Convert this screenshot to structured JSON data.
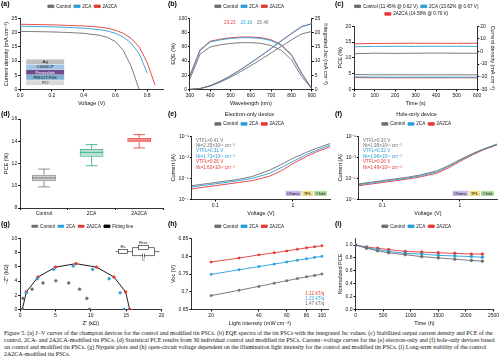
{
  "chart_data": [
    {
      "label": "(a)",
      "type": "line",
      "x_label": "Voltage (V)",
      "y_label": "Current density (mA cm⁻²)",
      "x": [
        0,
        0.1,
        0.2,
        0.3,
        0.4,
        0.5,
        0.55,
        0.6,
        0.65,
        0.7,
        0.75,
        0.8,
        0.85
      ],
      "series": [
        {
          "name": "Control",
          "color": "#6e6e6e",
          "values": [
            20.5,
            20.4,
            20.3,
            20.1,
            19.8,
            19.1,
            18.4,
            16.9,
            13.8,
            8.0,
            0.0,
            null,
            null
          ]
        },
        {
          "name": "2CA",
          "color": "#2a9fd8",
          "values": [
            22.3,
            22.2,
            22.1,
            21.9,
            21.6,
            21.1,
            20.6,
            19.8,
            18.5,
            16.3,
            12.6,
            5.8,
            null
          ]
        },
        {
          "name": "2A2CA",
          "color": "#e53935",
          "values": [
            23.0,
            22.9,
            22.8,
            22.6,
            22.4,
            22.0,
            21.6,
            20.9,
            19.8,
            18.0,
            15.0,
            9.5,
            1.5
          ]
        }
      ],
      "xlim": [
        0,
        0.9
      ],
      "xticks": [
        {
          "value": 0,
          "label": "0.0"
        },
        0.2,
        0.4,
        0.6,
        0.8
      ],
      "ylim": [
        0,
        25
      ],
      "yticks": [
        0,
        5,
        10,
        15,
        20,
        25
      ],
      "legend": "top",
      "inset": [
        "Ag",
        "C60/BCP",
        "Perovskite",
        "PEDOT:PSS",
        "ITO"
      ]
    },
    {
      "label": "(b)",
      "type": "line",
      "x_label": "Wavelength (nm)",
      "y_label": "EQE (%)",
      "y2_label": "Integrated Jsc (mA cm⁻²)",
      "x": [
        300,
        350,
        400,
        450,
        500,
        550,
        600,
        650,
        700,
        750,
        800,
        850,
        900
      ],
      "series": [
        {
          "name": "Control",
          "color": "#6e6e6e",
          "values": [
            15,
            50,
            60,
            63,
            65,
            66,
            66,
            65,
            62,
            55,
            42,
            18,
            1
          ],
          "integrated_current": [
            0,
            0.3,
            1.2,
            2.6,
            4.3,
            6.3,
            8.4,
            10.6,
            12.9,
            15.2,
            17.5,
            19.6,
            20.46
          ]
        },
        {
          "name": "2CA",
          "color": "#2a9fd8",
          "values": [
            18,
            55,
            67,
            70,
            72,
            73,
            73,
            72,
            69,
            62,
            48,
            22,
            1
          ],
          "integrated_current": [
            0,
            0.3,
            1.3,
            2.9,
            4.8,
            7.0,
            9.4,
            11.9,
            14.5,
            17.1,
            19.7,
            22.1,
            23.16
          ]
        },
        {
          "name": "2A2CA",
          "color": "#e53935",
          "values": [
            20,
            56,
            68,
            71,
            73,
            74,
            74,
            73,
            70,
            63,
            49,
            23,
            1
          ],
          "integrated_current": [
            0,
            0.3,
            1.3,
            2.9,
            4.8,
            7.0,
            9.4,
            11.9,
            14.5,
            17.2,
            19.8,
            22.2,
            23.23
          ]
        }
      ],
      "xlim": [
        300,
        900
      ],
      "xticks": [
        300,
        400,
        500,
        600,
        700,
        800,
        900
      ],
      "ylim": [
        0,
        100
      ],
      "yticks": [
        0,
        20,
        40,
        60,
        80,
        100
      ],
      "y2lim": [
        0,
        25
      ],
      "y2ticks": [
        0,
        5,
        10,
        15,
        20,
        25
      ],
      "legend": "top",
      "annotations": [
        {
          "text": "23.23",
          "color": "#e53935"
        },
        {
          "text": "23.16",
          "color": "#2a9fd8"
        },
        {
          "text": "20.46",
          "color": "#6e6e6e"
        }
      ]
    },
    {
      "label": "(c)",
      "type": "line",
      "x_label": "Time (s)",
      "y_label": "PCE (%)",
      "y2_label": "Current density (mA cm⁻²)",
      "x": [
        0,
        100,
        200,
        300,
        400,
        500,
        600
      ],
      "series": [
        {
          "name": "Control (11.45% @ 0.62 V)",
          "color": "#6e6e6e",
          "values": [
            11.3,
            11.45,
            11.4,
            11.45,
            11.5,
            11.45,
            11.45
          ],
          "current_density": [
            -18.2,
            -18.45,
            -18.4,
            -18.45,
            -18.5,
            -18.45,
            -18.45
          ]
        },
        {
          "name": "2CA (13.62% @ 0.67 V)",
          "color": "#2a9fd8",
          "values": [
            13.5,
            13.6,
            13.62,
            13.6,
            13.65,
            13.62,
            13.62
          ],
          "current_density": [
            -20.1,
            -20.3,
            -20.33,
            -20.3,
            -20.35,
            -20.33,
            -20.33
          ]
        },
        {
          "name": "2A2CA (14.58% @ 0.70 V)",
          "color": "#e53935",
          "values": [
            14.4,
            14.55,
            14.58,
            14.6,
            14.58,
            14.58,
            14.6
          ],
          "current_density": [
            -20.6,
            -20.8,
            -20.83,
            -20.85,
            -20.83,
            -20.83,
            -20.85
          ]
        }
      ],
      "xlim": [
        0,
        600
      ],
      "xticks": [
        0,
        100,
        200,
        300,
        400,
        500,
        600
      ],
      "ylim": [
        0,
        20
      ],
      "yticks": [
        0,
        5,
        10,
        15,
        20
      ],
      "y2lim": [
        -30,
        20
      ],
      "y2ticks": [
        -30,
        -20,
        -10,
        0,
        10,
        20
      ],
      "legend": "top"
    },
    {
      "label": "(d)",
      "type": "box",
      "y_label": "PCE (%)",
      "categories": [
        "Control",
        "2CA",
        "2A2CA"
      ],
      "colors": [
        "#6e6e6e",
        "#2aa87a",
        "#e53935"
      ],
      "min": [
        9.9,
        11.8,
        13.4
      ],
      "q1": [
        10.4,
        12.6,
        13.9
      ],
      "median": [
        10.7,
        13.0,
        14.1
      ],
      "q3": [
        11.0,
        13.3,
        14.3
      ],
      "max": [
        11.5,
        13.7,
        14.6
      ],
      "ylim": [
        8,
        16
      ],
      "yticks": [
        8,
        10,
        12,
        14,
        16
      ]
    },
    {
      "label": "(e)",
      "type": "line",
      "title": "Electron-only device",
      "x_label": "Voltage (V)",
      "y_label": "Current (A)",
      "log": true,
      "x": [
        0.05,
        0.07,
        0.1,
        0.15,
        0.2,
        0.3,
        0.5,
        0.7,
        1,
        1.5,
        2,
        3
      ],
      "series": [
        {
          "name": "Control",
          "color": "#6e6e6e",
          "values": [
            2e-06,
            2.8e-06,
            4e-06,
            6e-06,
            8e-06,
            1.5e-05,
            6e-05,
            0.0002,
            0.0008,
            0.003,
            0.007,
            0.02
          ]
        },
        {
          "name": "2CA",
          "color": "#2a9fd8",
          "values": [
            1.5e-06,
            2.1e-06,
            3e-06,
            4.5e-06,
            6e-06,
            1e-05,
            3e-05,
            0.0001,
            0.0004,
            0.0018,
            0.0045,
            0.014
          ]
        },
        {
          "name": "2A2CA",
          "color": "#e53935",
          "values": [
            1e-06,
            1.4e-06,
            2e-06,
            3e-06,
            4e-06,
            6e-06,
            1.6e-05,
            5e-05,
            0.00025,
            0.0012,
            0.0032,
            0.01
          ]
        }
      ],
      "xlim": [
        0.05,
        3
      ],
      "xticks": [
        0.1,
        1
      ],
      "ylim": [
        1e-07,
        0.1
      ],
      "yticks": [
        {
          "value": 1e-07,
          "label": "10⁻⁷"
        },
        {
          "value": 1e-05,
          "label": "10⁻⁵"
        },
        {
          "value": 0.001,
          "label": "10⁻³"
        },
        {
          "value": 0.1,
          "label": "10⁻¹"
        }
      ],
      "legend": "top",
      "annotations": [
        {
          "text": "VTFL=0.41 V",
          "color": "#6e6e6e"
        },
        {
          "text": "Nt=2.35×10¹⁶ cm⁻³",
          "color": "#6e6e6e"
        },
        {
          "text": "VTFL=0.31 V",
          "color": "#2a9fd8"
        },
        {
          "text": "Nt=1.73×10¹⁶ cm⁻³",
          "color": "#2a9fd8"
        },
        {
          "text": "VTFL=0.26 V",
          "color": "#e53935"
        },
        {
          "text": "Nt=1.60×10¹⁶ cm⁻³",
          "color": "#e53935"
        }
      ],
      "regions": [
        {
          "text": "Ohmic",
          "color": "#c9b8ec"
        },
        {
          "text": "TFL",
          "color": "#f5e08a"
        },
        {
          "text": "Child",
          "color": "#b6e3a6"
        }
      ]
    },
    {
      "label": "(f)",
      "type": "line",
      "title": "Hole-only device",
      "x_label": "Voltage (V)",
      "y_label": "Current (A)",
      "log": true,
      "x": [
        0.05,
        0.07,
        0.1,
        0.15,
        0.2,
        0.3,
        0.5,
        0.7,
        1,
        1.5,
        2,
        3
      ],
      "series": [
        {
          "name": "Control",
          "color": "#6e6e6e",
          "values": [
            3e-06,
            4.2e-06,
            6e-06,
            9e-06,
            1.2e-05,
            2e-05,
            5e-05,
            0.00015,
            0.0006,
            0.0025,
            0.006,
            0.018
          ]
        },
        {
          "name": "2CA",
          "color": "#2a9fd8",
          "values": [
            2.5e-06,
            3.5e-06,
            5e-06,
            7.5e-06,
            1e-05,
            1.6e-05,
            4e-05,
            0.00012,
            0.0005,
            0.0022,
            0.0055,
            0.016
          ]
        },
        {
          "name": "2A2CA",
          "color": "#e53935",
          "values": [
            2e-06,
            2.8e-06,
            4e-06,
            6e-06,
            8e-06,
            1.3e-05,
            3e-05,
            9e-05,
            0.0004,
            0.0019,
            0.005,
            0.015
          ]
        }
      ],
      "xlim": [
        0.05,
        3
      ],
      "xticks": [
        0.1,
        1
      ],
      "ylim": [
        1e-07,
        0.1
      ],
      "yticks": [
        {
          "value": 1e-07,
          "label": "10⁻⁷"
        },
        {
          "value": 1e-05,
          "label": "10⁻⁵"
        },
        {
          "value": 0.001,
          "label": "10⁻³"
        },
        {
          "value": 0.1,
          "label": "10⁻¹"
        }
      ],
      "legend": "top",
      "annotations": [
        {
          "text": "VTFL=0.33 V",
          "color": "#6e6e6e"
        },
        {
          "text": "Nt=1.99×10¹⁶ cm⁻³",
          "color": "#6e6e6e"
        },
        {
          "text": "VTFL=0.32 V",
          "color": "#2a9fd8"
        },
        {
          "text": "Nt=1.96×10¹⁶ cm⁻³",
          "color": "#2a9fd8"
        },
        {
          "text": "VTFL=0.26 V",
          "color": "#e53935"
        },
        {
          "text": "Nt=1.49×10¹⁶ cm⁻³",
          "color": "#e53935"
        }
      ],
      "regions": [
        {
          "text": "Ohmic",
          "color": "#c9b8ec"
        },
        {
          "text": "TFL",
          "color": "#f5e08a"
        },
        {
          "text": "Child",
          "color": "#b6e3a6"
        }
      ]
    },
    {
      "label": "(g)",
      "type": "scatter",
      "x_label": "Z' (kΩ)",
      "y_label": "-Z'' (kΩ)",
      "series": [
        {
          "name": "Control",
          "color": "#6e6e6e",
          "marker": "circle",
          "line_style": "none",
          "x": [
            0.3,
            0.41,
            1.69,
            3.23,
            5.05,
            6.87,
            8.41,
            9.44,
            9.8
          ],
          "values": [
            0,
            1.55,
            2.85,
            3.73,
            4.04,
            3.73,
            2.85,
            1.55,
            0
          ]
        },
        {
          "name": "2CA",
          "color": "#2a9fd8",
          "marker": "circle",
          "line_style": "none",
          "x": [
            0.3,
            0.85,
            2.41,
            4.74,
            7.5,
            10.26,
            12.59,
            14.15,
            14.7
          ],
          "values": [
            0,
            2.34,
            4.33,
            5.65,
            6.12,
            5.65,
            4.33,
            2.34,
            0
          ]
        },
        {
          "name": "2A2CA",
          "color": "#e53935",
          "marker": "circle",
          "line_style": "none",
          "x": [
            0.3,
            0.88,
            2.53,
            4.99,
            7.9,
            10.81,
            13.27,
            14.92,
            15.5
          ],
          "values": [
            0,
            2.47,
            4.57,
            5.97,
            6.46,
            5.97,
            4.57,
            2.47,
            0
          ]
        },
        {
          "name": "Fitting line",
          "color": "#000000",
          "line_style": "solid",
          "x": [
            0.3,
            0.88,
            2.53,
            4.99,
            7.9,
            10.81,
            13.27,
            14.92,
            15.5
          ],
          "values": [
            0,
            2.47,
            4.57,
            5.97,
            6.46,
            5.97,
            4.57,
            2.47,
            0
          ]
        }
      ],
      "xlim": [
        0,
        20
      ],
      "xticks": [
        0,
        5,
        10,
        15,
        20
      ],
      "ylim": [
        0,
        10
      ],
      "yticks": [
        0,
        2,
        4,
        6,
        8,
        10
      ],
      "legend": "top",
      "inset": [
        "Rs",
        "Rrec",
        "C"
      ]
    },
    {
      "label": "(h)",
      "type": "line",
      "x_label": "Light intensity (mW cm⁻²)",
      "y_label": "Voc (V)",
      "log": "x",
      "x": [
        20,
        30,
        40,
        50,
        60,
        70,
        80,
        90,
        100
      ],
      "series": [
        {
          "name": "Control",
          "color": "#6e6e6e",
          "marker": "square",
          "values": [
            0.689,
            0.704,
            0.715,
            0.724,
            0.731,
            0.737,
            0.742,
            0.746,
            0.75
          ]
        },
        {
          "name": "2CA",
          "color": "#2a9fd8",
          "marker": "square",
          "values": [
            0.749,
            0.762,
            0.771,
            0.778,
            0.784,
            0.789,
            0.793,
            0.797,
            0.8
          ]
        },
        {
          "name": "2A2CA",
          "color": "#e53935",
          "marker": "square",
          "values": [
            0.784,
            0.795,
            0.804,
            0.81,
            0.815,
            0.82,
            0.824,
            0.827,
            0.83
          ]
        }
      ],
      "xlim": [
        15,
        110
      ],
      "xticks": [
        20,
        40,
        60,
        80,
        100
      ],
      "ylim": [
        0.65,
        0.85
      ],
      "yticks": [
        0.65,
        0.7,
        0.75,
        0.8,
        0.85
      ],
      "legend": "top",
      "annotations": [
        {
          "text": "1.12 kT/q",
          "color": "#e53935"
        },
        {
          "text": "1.23 kT/q",
          "color": "#2a9fd8"
        },
        {
          "text": "1.47 kT/q",
          "color": "#6e6e6e"
        }
      ]
    },
    {
      "label": "(i)",
      "type": "line",
      "x_label": "Time (h)",
      "y_label": "Normalized PCE",
      "x": [
        0,
        200,
        400,
        600,
        900,
        1200,
        1500,
        1800,
        2100,
        2300
      ],
      "series": [
        {
          "name": "Control",
          "color": "#6e6e6e",
          "marker": "circle",
          "values": [
            1,
            0.95,
            0.91,
            0.88,
            0.85,
            0.82,
            0.8,
            0.78,
            0.76,
            0.75
          ]
        },
        {
          "name": "2CA",
          "color": "#2a9fd8",
          "marker": "circle",
          "values": [
            1,
            0.96,
            0.93,
            0.9,
            0.87,
            0.86,
            0.84,
            0.83,
            0.82,
            0.81
          ]
        },
        {
          "name": "2A2CA",
          "color": "#e53935",
          "marker": "circle",
          "values": [
            1,
            0.97,
            0.95,
            0.93,
            0.9,
            0.89,
            0.88,
            0.87,
            0.86,
            0.86
          ]
        }
      ],
      "xlim": [
        0,
        2500
      ],
      "xticks": [
        0,
        500,
        1000,
        1500,
        2000,
        2500
      ],
      "ylim": [
        0,
        1.1
      ],
      "yticks": [
        {
          "value": 0,
          "label": "0.0"
        },
        0.2,
        0.4,
        0.6,
        0.8,
        {
          "value": 1,
          "label": "1.0"
        }
      ],
      "legend": "top"
    }
  ],
  "caption": "Figure 5. (a) J−V curves of the champion devices for the control and modified tin PSCs. (b) EQE spectra of the tin PSCs with the integrated Jsc values. (c) Stabilized output current density and PCE of the control, 2CA- and 2A2CA-modified tin PSCs. (d) Statistical PCE results from 30 individual control and modified tin PSCs. Current−voltage curves for the (e) electron-only and (f) hole-only devices based on control and modified tin PSCs. (g) Nyquist plots and (h) open-circuit voltage dependent on the illumination light intensity for the control and modified tin PSCs. (i) Long-term stability of the control 2A2CA-modified tin PSCs."
}
